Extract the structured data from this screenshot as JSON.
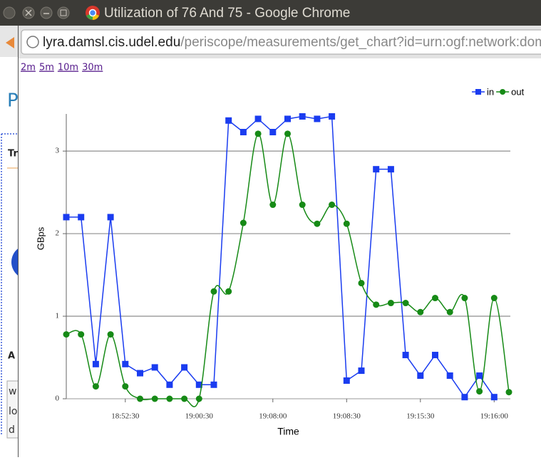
{
  "window": {
    "title": "Utilization of 76 And 75 - Google Chrome",
    "url_host": "lyra.damsl.cis.udel.edu",
    "url_path": "/periscope/measurements/get_chart?id=urn:ogf:network:doma",
    "links": [
      "2m",
      "5m",
      "10m",
      "30m"
    ]
  },
  "background": {
    "texts": [
      "P",
      "Tr",
      "A",
      "w",
      "lo",
      "d"
    ]
  },
  "chart_data": {
    "type": "line",
    "xlabel": "Time",
    "ylabel": "GBps",
    "categories": [
      null,
      null,
      null,
      null,
      "18:52:30",
      null,
      null,
      null,
      null,
      "19:00:30",
      null,
      null,
      null,
      null,
      "19:08:00",
      null,
      null,
      null,
      null,
      "19:08:30",
      null,
      null,
      null,
      null,
      "19:15:30",
      null,
      null,
      null,
      null,
      "19:16:00",
      null
    ],
    "series": [
      {
        "name": "in",
        "color": "#1a3cf0",
        "marker": "square",
        "smooth": false,
        "values": [
          2.2,
          2.2,
          0.42,
          2.2,
          0.42,
          0.31,
          0.38,
          0.17,
          0.38,
          0.17,
          0.17,
          3.37,
          3.23,
          3.39,
          3.23,
          3.39,
          3.42,
          3.39,
          3.42,
          0.22,
          0.34,
          2.78,
          2.78,
          0.53,
          0.28,
          0.53,
          0.28,
          0.02,
          0.28,
          0.02,
          null
        ]
      },
      {
        "name": "out",
        "color": "#168a16",
        "marker": "circle",
        "smooth": true,
        "values": [
          0.78,
          0.78,
          0.15,
          0.78,
          0.15,
          0,
          0,
          0,
          0,
          0,
          1.3,
          1.3,
          2.13,
          3.21,
          2.35,
          3.21,
          2.35,
          2.12,
          2.35,
          2.12,
          1.4,
          1.14,
          1.16,
          1.16,
          1.05,
          1.22,
          1.05,
          1.22,
          0.09,
          1.22,
          0.08
        ]
      }
    ],
    "ylim": [
      0,
      3.45
    ],
    "yticks": [
      0,
      1,
      2,
      3
    ],
    "grid": true,
    "legend": "top-right"
  }
}
